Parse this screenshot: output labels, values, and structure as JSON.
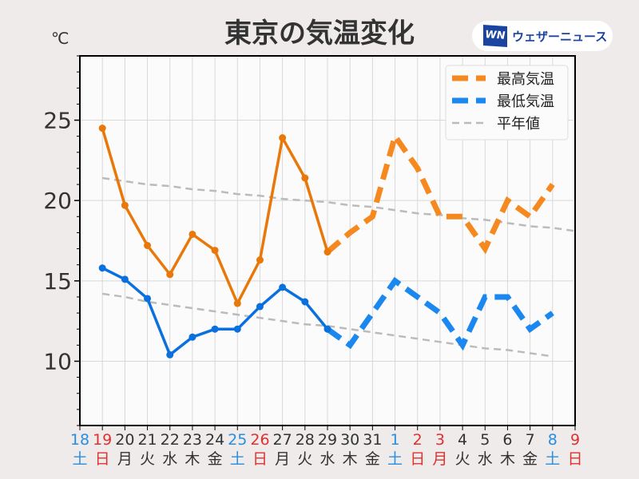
{
  "header": {
    "title": "東京の気温変化",
    "unit": "℃",
    "logo_mark": "WN",
    "logo_text": "ウェザーニュース"
  },
  "chart_data": {
    "type": "line",
    "title": "東京の気温変化",
    "ylabel": "℃",
    "ylim": [
      6,
      29
    ],
    "yticks": [
      10,
      15,
      20,
      25
    ],
    "x_days": [
      "18",
      "19",
      "20",
      "21",
      "22",
      "23",
      "24",
      "25",
      "26",
      "27",
      "28",
      "29",
      "30",
      "31",
      "1",
      "2",
      "3",
      "4",
      "5",
      "6",
      "7",
      "8",
      "9"
    ],
    "x_weekdays": [
      "土",
      "日",
      "月",
      "火",
      "水",
      "木",
      "金",
      "土",
      "日",
      "月",
      "火",
      "水",
      "木",
      "金",
      "土",
      "日",
      "月",
      "火",
      "水",
      "木",
      "金",
      "土",
      "日"
    ],
    "x_colors": [
      "#2a8ee0",
      "#e03030",
      "#333",
      "#333",
      "#333",
      "#333",
      "#333",
      "#2a8ee0",
      "#e03030",
      "#333",
      "#333",
      "#333",
      "#333",
      "#333",
      "#2a8ee0",
      "#e03030",
      "#e03030",
      "#333",
      "#333",
      "#333",
      "#333",
      "#2a8ee0",
      "#e03030"
    ],
    "grid": true,
    "legend_position": "top-right",
    "series": [
      {
        "name": "最高気温",
        "color": "#e8780a",
        "dash_color": "#f5891f",
        "observed": {
          "start": 1,
          "values": [
            24.5,
            19.7,
            17.2,
            15.4,
            17.9,
            16.9,
            13.6,
            16.3,
            23.9,
            21.4,
            16.8
          ]
        },
        "forecast": {
          "start": 11,
          "values": [
            16.8,
            18,
            19,
            24,
            22,
            19,
            19,
            17,
            20,
            19,
            21
          ]
        }
      },
      {
        "name": "最低気温",
        "color": "#0a70dd",
        "dash_color": "#1a88ee",
        "observed": {
          "start": 1,
          "values": [
            15.8,
            15.1,
            13.9,
            10.4,
            11.5,
            12,
            12,
            13.4,
            14.6,
            13.7,
            12
          ]
        },
        "forecast": {
          "start": 11,
          "values": [
            12,
            11,
            13,
            15,
            14,
            13,
            11,
            14,
            14,
            12,
            13
          ]
        }
      },
      {
        "name": "平年値",
        "color": "#bbbbbb",
        "normal_high": {
          "start": 1,
          "values": [
            21.4,
            21.2,
            21.0,
            20.9,
            20.7,
            20.6,
            20.4,
            20.3,
            20.1,
            20.0,
            19.9,
            19.7,
            19.6,
            19.4,
            19.2,
            19.1,
            18.9,
            18.8,
            18.6,
            18.4,
            18.3,
            18.1
          ]
        },
        "normal_low": {
          "start": 1,
          "values": [
            14.2,
            14.0,
            13.7,
            13.5,
            13.3,
            13.1,
            12.9,
            12.7,
            12.5,
            12.3,
            12.2,
            12.0,
            11.8,
            11.6,
            11.4,
            11.2,
            11.0,
            10.8,
            10.7,
            10.5,
            10.3
          ]
        }
      }
    ]
  }
}
